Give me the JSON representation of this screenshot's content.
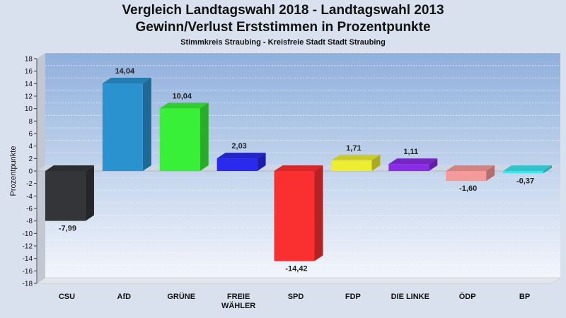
{
  "chart_data": {
    "type": "bar",
    "title": "Vergleich Landtagswahl 2018 - Landtagswahl 2013",
    "subtitle_1": "Gewinn/Verlust Erststimmen in Prozentpunkte",
    "subtitle_2": "Stimmkreis Straubing - Kreisfreie Stadt Stadt Straubing",
    "ylabel": "Prozentpunkte",
    "xlabel": "",
    "ylim": [
      -18,
      18
    ],
    "yticks": [
      18,
      16,
      14,
      12,
      10,
      8,
      6,
      4,
      2,
      0,
      -2,
      -4,
      -6,
      -8,
      -10,
      -12,
      -14,
      -16,
      -18
    ],
    "categories": [
      "CSU",
      "AfD",
      "GRÜNE",
      "FREIE WÄHLER",
      "SPD",
      "FDP",
      "DIE LINKE",
      "ÖDP",
      "BP"
    ],
    "category_lines": [
      [
        "CSU"
      ],
      [
        "AfD"
      ],
      [
        "GRÜNE"
      ],
      [
        "FREIE",
        "WÄHLER"
      ],
      [
        "SPD"
      ],
      [
        "FDP"
      ],
      [
        "DIE LINKE"
      ],
      [
        "ÖDP"
      ],
      [
        "BP"
      ]
    ],
    "values": [
      -7.99,
      14.04,
      10.04,
      2.03,
      -14.42,
      1.71,
      1.11,
      -1.6,
      -0.37
    ],
    "value_labels": [
      "-7,99",
      "14,04",
      "10,04",
      "2,03",
      "-14,42",
      "1,71",
      "1,11",
      "-1,60",
      "-0,37"
    ],
    "colors": [
      "#333538",
      "#2b92d0",
      "#38f038",
      "#2a2aee",
      "#fa3030",
      "#eeee30",
      "#8a2be6",
      "#f59a9a",
      "#40e4ec"
    ],
    "grid": true,
    "legend": "none"
  }
}
